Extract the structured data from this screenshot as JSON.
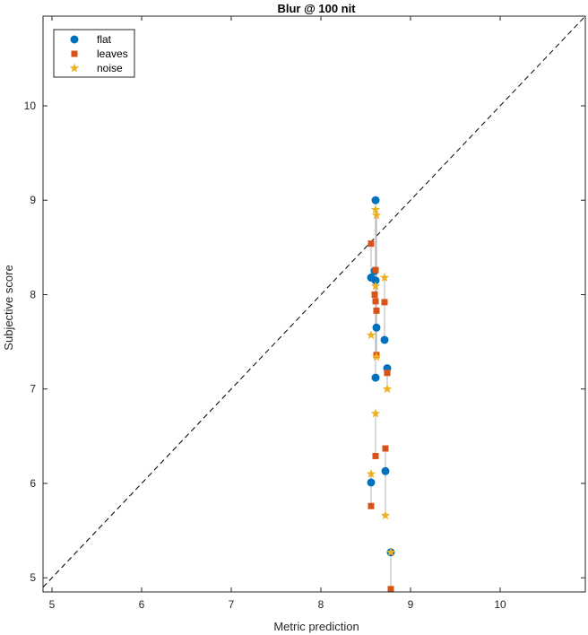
{
  "chart_data": {
    "type": "scatter",
    "title": "Blur @ 100 nit",
    "xlabel": "Metric prediction",
    "ylabel": "Subjective score",
    "xlim": [
      4.9,
      10.95
    ],
    "ylim": [
      4.85,
      10.95
    ],
    "xticks": [
      5,
      6,
      7,
      8,
      9,
      10
    ],
    "yticks": [
      5,
      6,
      7,
      8,
      9,
      10
    ],
    "diagonal": "dashed identity line y = x",
    "legend_position": "top-left",
    "series": [
      {
        "name": "flat",
        "marker": "circle",
        "color": "#0072BD",
        "points": [
          [
            8.61,
            9.0
          ],
          [
            8.6,
            8.25
          ],
          [
            8.56,
            8.18
          ],
          [
            8.61,
            8.15
          ],
          [
            8.62,
            7.65
          ],
          [
            8.71,
            7.52
          ],
          [
            8.74,
            7.22
          ],
          [
            8.61,
            7.12
          ],
          [
            8.72,
            6.13
          ],
          [
            8.56,
            6.01
          ],
          [
            8.78,
            5.27
          ]
        ]
      },
      {
        "name": "leaves",
        "marker": "square",
        "color": "#D95319",
        "points": [
          [
            8.56,
            8.54
          ],
          [
            8.61,
            8.26
          ],
          [
            8.6,
            8.0
          ],
          [
            8.61,
            7.93
          ],
          [
            8.71,
            7.92
          ],
          [
            8.62,
            7.83
          ],
          [
            8.62,
            7.36
          ],
          [
            8.74,
            7.17
          ],
          [
            8.72,
            6.37
          ],
          [
            8.61,
            6.29
          ],
          [
            8.56,
            5.76
          ],
          [
            8.78,
            4.88
          ]
        ]
      },
      {
        "name": "noise",
        "marker": "star",
        "color": "#EDB120",
        "points": [
          [
            8.61,
            8.9
          ],
          [
            8.62,
            8.84
          ],
          [
            8.71,
            8.18
          ],
          [
            8.61,
            8.09
          ],
          [
            8.56,
            7.57
          ],
          [
            8.62,
            7.34
          ],
          [
            8.74,
            7.0
          ],
          [
            8.61,
            6.74
          ],
          [
            8.56,
            6.1
          ],
          [
            8.72,
            5.66
          ],
          [
            8.78,
            5.27
          ]
        ]
      }
    ],
    "connectors": [
      [
        [
          8.61,
          9.0
        ],
        [
          8.61,
          8.15
        ]
      ],
      [
        [
          8.56,
          8.54
        ],
        [
          8.56,
          8.18
        ]
      ],
      [
        [
          8.62,
          8.84
        ],
        [
          8.62,
          7.34
        ]
      ],
      [
        [
          8.61,
          8.09
        ],
        [
          8.61,
          7.12
        ]
      ],
      [
        [
          8.71,
          8.18
        ],
        [
          8.71,
          7.52
        ]
      ],
      [
        [
          8.74,
          7.22
        ],
        [
          8.74,
          7.0
        ]
      ],
      [
        [
          8.61,
          6.74
        ],
        [
          8.61,
          6.29
        ]
      ],
      [
        [
          8.72,
          6.37
        ],
        [
          8.72,
          5.66
        ]
      ],
      [
        [
          8.56,
          6.1
        ],
        [
          8.56,
          5.76
        ]
      ],
      [
        [
          8.78,
          5.27
        ],
        [
          8.78,
          4.88
        ]
      ]
    ]
  }
}
